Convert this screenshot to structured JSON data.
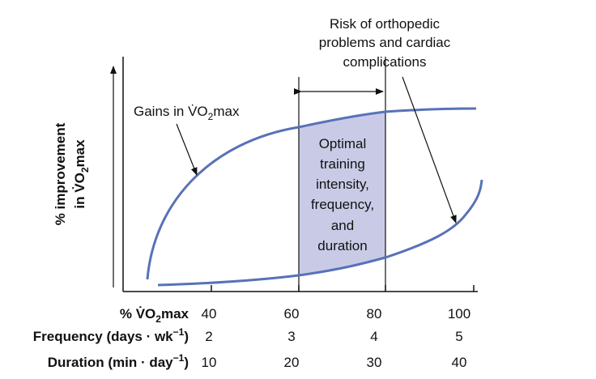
{
  "y_axis_label": {
    "line1": "% improvement",
    "line2": [
      "in V̇O",
      "2",
      "max"
    ]
  },
  "curves": {
    "gains_label": [
      "Gains in V̇O",
      "2",
      "max"
    ]
  },
  "risk_label": [
    "Risk of orthopedic",
    "problems and cardiac",
    "complications"
  ],
  "optimal_label": [
    "Optimal",
    "training",
    "intensity,",
    "frequency,",
    "and",
    "duration"
  ],
  "rows": [
    {
      "label": [
        "% V̇O",
        "2",
        "max"
      ],
      "values": [
        40,
        60,
        80,
        100
      ]
    },
    {
      "label": [
        "Frequency (days · wk",
        "−1",
        ")"
      ],
      "values": [
        2,
        3,
        4,
        5
      ]
    },
    {
      "label": [
        "Duration (min · day",
        "−1",
        ")"
      ],
      "values": [
        10,
        20,
        30,
        40
      ]
    }
  ]
}
